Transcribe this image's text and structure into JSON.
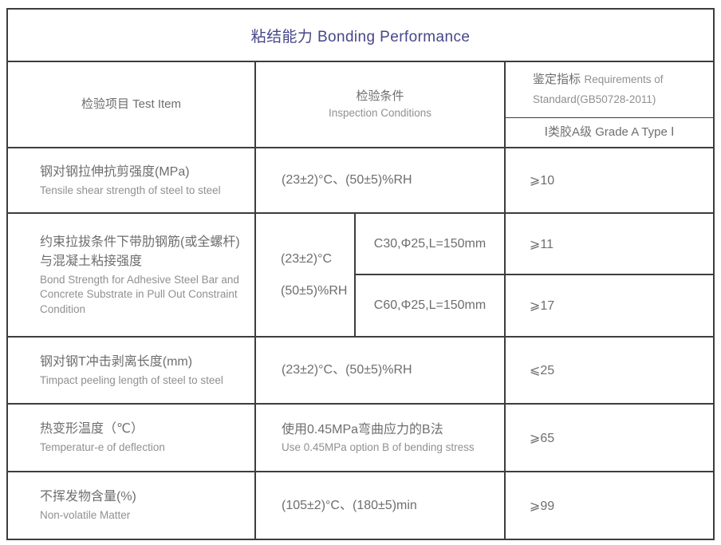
{
  "colors": {
    "title_color": "#46468a",
    "grid_line": "#3d3d3d",
    "text_primary": "#6e6e6e",
    "text_secondary": "#909090"
  },
  "table": {
    "title": "粘结能力 Bonding Performance",
    "header": {
      "test_item": "检验项目 Test Item",
      "conditions_zh": "检验条件",
      "conditions_en": "Inspection Conditions",
      "requirements_zh": "鉴定指标",
      "requirements_en": "Requirements of Standard(GB50728-2011)",
      "grade": "Ⅰ类胶A级  Grade A Type Ⅰ"
    },
    "rows": [
      {
        "item_zh": "钢对钢拉伸抗剪强度(MPa)",
        "item_en": "Tensile shear strength of steel to steel",
        "condition": "(23±2)°C、(50±5)%RH",
        "requirement": "⩾10"
      },
      {
        "item_zh": "约束拉拔条件下带肋钢筋(或全螺杆)与混凝土粘接强度",
        "item_en": "Bond Strength for Adhesive Steel Bar and Concrete Substrate in Pull Out Constraint Condition",
        "condition_line1": "(23±2)°C",
        "condition_line2": "(50±5)%RH",
        "sub_rows": [
          {
            "spec": "C30,Φ25,L=150mm",
            "requirement": "⩾11"
          },
          {
            "spec": "C60,Φ25,L=150mm",
            "requirement": "⩾17"
          }
        ]
      },
      {
        "item_zh": "钢对钢T冲击剥离长度(mm)",
        "item_en": "Timpact peeling length of steel to steel",
        "condition": "(23±2)°C、(50±5)%RH",
        "requirement": "⩽25"
      },
      {
        "item_zh": "热变形温度（℃）",
        "item_en": "Temperatur-e of deflection",
        "condition_zh": "使用0.45MPa弯曲应力的B法",
        "condition_en": "Use 0.45MPa option B of bending stress",
        "requirement": "⩾65"
      },
      {
        "item_zh": "不挥发物含量(%)",
        "item_en": "Non-volatile Matter",
        "condition": "(105±2)°C、(180±5)min",
        "requirement": "⩾99"
      }
    ]
  }
}
